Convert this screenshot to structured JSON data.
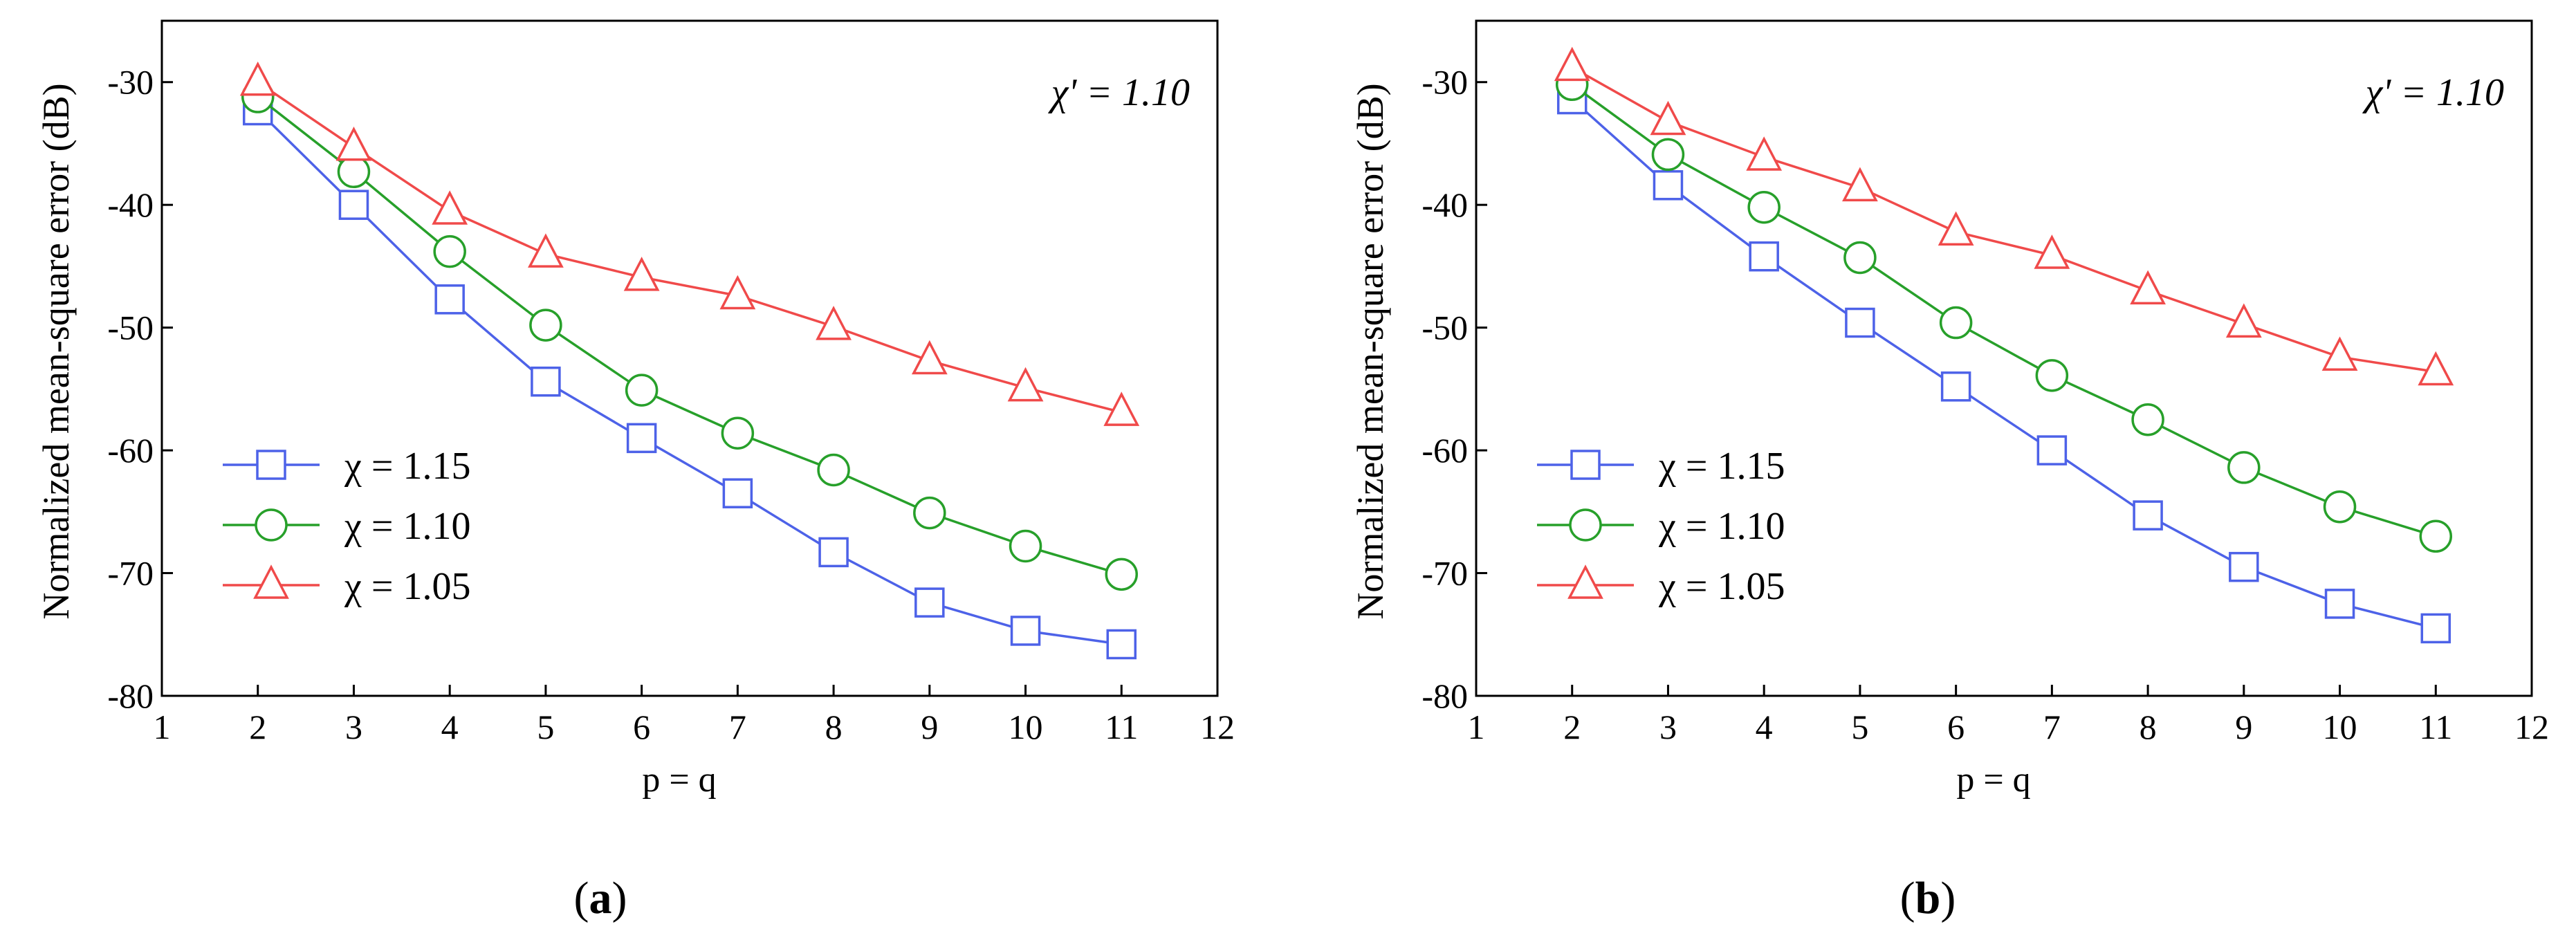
{
  "chart_data": [
    {
      "type": "line",
      "panel_label": "a",
      "annotation": "χ' = 1.10",
      "xlabel": "p = q",
      "ylabel": "Normalized mean-square error (dB)",
      "xlim": [
        1,
        12
      ],
      "ylim": [
        -80,
        -25
      ],
      "xticks": [
        "1",
        "2",
        "3",
        "4",
        "5",
        "6",
        "7",
        "8",
        "9",
        "10",
        "11",
        "12"
      ],
      "yticks": [
        "-30",
        "-40",
        "-50",
        "-60",
        "-70",
        "-80"
      ],
      "legend_position": "bottom-left",
      "x": [
        2,
        3,
        4,
        5,
        6,
        7,
        8,
        9,
        10,
        11
      ],
      "series": [
        {
          "name": "χ = 1.15",
          "marker": "square",
          "color": "#4d62e8",
          "values": [
            -32.3,
            -40.0,
            -47.7,
            -54.4,
            -59.0,
            -63.5,
            -68.3,
            -72.4,
            -74.7,
            -75.8
          ]
        },
        {
          "name": "χ = 1.10",
          "marker": "circle",
          "color": "#27a02a",
          "values": [
            -31.2,
            -37.3,
            -43.8,
            -49.8,
            -55.1,
            -58.6,
            -61.6,
            -65.1,
            -67.8,
            -70.1
          ]
        },
        {
          "name": "χ = 1.05",
          "marker": "triangle",
          "color": "#f04a4a",
          "values": [
            -30.0,
            -35.3,
            -40.5,
            -44.0,
            -45.9,
            -47.4,
            -49.9,
            -52.7,
            -54.9,
            -56.9
          ]
        }
      ]
    },
    {
      "type": "line",
      "panel_label": "b",
      "annotation": "χ' = 1.10",
      "xlabel": "p = q",
      "ylabel": "Normalized mean-square error (dB)",
      "xlim": [
        1,
        12
      ],
      "ylim": [
        -80,
        -25
      ],
      "xticks": [
        "1",
        "2",
        "3",
        "4",
        "5",
        "6",
        "7",
        "8",
        "9",
        "10",
        "11",
        "12"
      ],
      "yticks": [
        "-30",
        "-40",
        "-50",
        "-60",
        "-70",
        "-80"
      ],
      "legend_position": "bottom-left",
      "x": [
        2,
        3,
        4,
        5,
        6,
        7,
        8,
        9,
        10,
        11
      ],
      "series": [
        {
          "name": "χ = 1.15",
          "marker": "square",
          "color": "#4d62e8",
          "values": [
            -31.4,
            -38.4,
            -44.2,
            -49.6,
            -54.8,
            -60.0,
            -65.3,
            -69.5,
            -72.5,
            -74.5
          ]
        },
        {
          "name": "χ = 1.10",
          "marker": "circle",
          "color": "#27a02a",
          "values": [
            -30.2,
            -35.9,
            -40.2,
            -44.3,
            -49.6,
            -53.9,
            -57.5,
            -61.4,
            -64.6,
            -67.0
          ]
        },
        {
          "name": "χ = 1.05",
          "marker": "triangle",
          "color": "#f04a4a",
          "values": [
            -28.8,
            -33.2,
            -36.1,
            -38.6,
            -42.2,
            -44.1,
            -47.0,
            -49.7,
            -52.4,
            -53.6
          ]
        }
      ]
    }
  ]
}
